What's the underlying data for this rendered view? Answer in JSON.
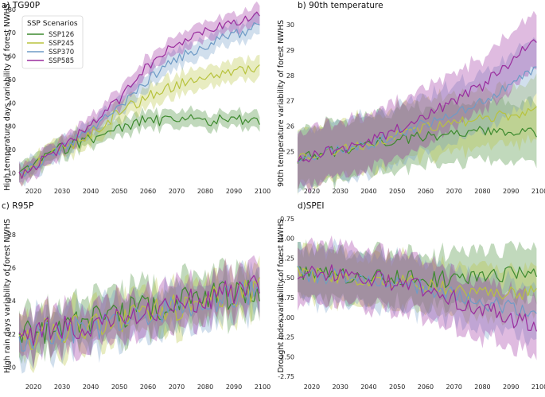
{
  "colors": {
    "SSP126": "#3d8a2e",
    "SSP245": "#b8c33e",
    "SSP370": "#6f9bc6",
    "SSP585": "#9a2d9e"
  },
  "legend": {
    "title": "SSP Scenarios",
    "entries": [
      "SSP126",
      "SSP245",
      "SSP370",
      "SSP585"
    ]
  },
  "chart_data": [
    {
      "type": "line",
      "title": "a) TG90P",
      "ylabel": "High temperature days variability of forest NWHS",
      "xlim": [
        2015,
        2100
      ],
      "ylim": [
        5,
        82
      ],
      "xticks": [
        "2020",
        "2030",
        "2040",
        "2050",
        "2060",
        "2070",
        "2080",
        "2090",
        "2100"
      ],
      "yticks": [
        "10",
        "20",
        "30",
        "40",
        "50",
        "60",
        "70",
        "80"
      ],
      "x_start": 2015,
      "x_end": 2099,
      "series": [
        {
          "name": "SSP126",
          "anchors": [
            [
              2015,
              9
            ],
            [
              2027,
              19
            ],
            [
              2040,
              25
            ],
            [
              2050,
              29
            ],
            [
              2058,
              32
            ],
            [
              2070,
              33
            ],
            [
              2099,
              32
            ]
          ],
          "band": 3.5,
          "noise": 2.6
        },
        {
          "name": "SSP245",
          "anchors": [
            [
              2015,
              9
            ],
            [
              2027,
              18
            ],
            [
              2040,
              27
            ],
            [
              2050,
              36
            ],
            [
              2060,
              43
            ],
            [
              2070,
              48
            ],
            [
              2085,
              52
            ],
            [
              2099,
              54
            ]
          ],
          "band": 4.5,
          "noise": 2.6
        },
        {
          "name": "SSP370",
          "anchors": [
            [
              2015,
              9
            ],
            [
              2027,
              18
            ],
            [
              2040,
              28
            ],
            [
              2050,
              38
            ],
            [
              2060,
              50
            ],
            [
              2070,
              59
            ],
            [
              2085,
              67
            ],
            [
              2099,
              73
            ]
          ],
          "band": 4,
          "noise": 2.2
        },
        {
          "name": "SSP585",
          "anchors": [
            [
              2015,
              9
            ],
            [
              2027,
              18
            ],
            [
              2040,
              31
            ],
            [
              2050,
              41
            ],
            [
              2060,
              56
            ],
            [
              2070,
              65
            ],
            [
              2085,
              73
            ],
            [
              2099,
              78
            ]
          ],
          "band": 4,
          "noise": 2.2
        }
      ]
    },
    {
      "type": "line",
      "title": "b) 90th temperature",
      "ylabel": "90th temperature variability of forest NWHS",
      "xlim": [
        2015,
        2100
      ],
      "ylim": [
        23.7,
        30.5
      ],
      "xticks": [
        "2020",
        "2030",
        "2040",
        "2050",
        "2060",
        "2070",
        "2080",
        "2090",
        "2100"
      ],
      "yticks": [
        "25",
        "26",
        "27",
        "28",
        "29",
        "30"
      ],
      "x_start": 2015,
      "x_end": 2099,
      "series": [
        {
          "name": "SSP126",
          "anchors": [
            [
              2015,
              24.7
            ],
            [
              2040,
              25.3
            ],
            [
              2060,
              25.6
            ],
            [
              2080,
              25.8
            ],
            [
              2099,
              25.7
            ]
          ],
          "band": 1.15,
          "noise": 0.22
        },
        {
          "name": "SSP245",
          "anchors": [
            [
              2015,
              24.7
            ],
            [
              2040,
              25.3
            ],
            [
              2060,
              25.9
            ],
            [
              2080,
              26.3
            ],
            [
              2099,
              26.6
            ]
          ],
          "band": 1.15,
          "noise": 0.22
        },
        {
          "name": "SSP370",
          "anchors": [
            [
              2015,
              24.7
            ],
            [
              2040,
              25.3
            ],
            [
              2060,
              26.1
            ],
            [
              2080,
              27.0
            ],
            [
              2099,
              28.3
            ]
          ],
          "band": 1.15,
          "noise": 0.22
        },
        {
          "name": "SSP585",
          "anchors": [
            [
              2015,
              24.7
            ],
            [
              2040,
              25.4
            ],
            [
              2060,
              26.4
            ],
            [
              2080,
              27.6
            ],
            [
              2099,
              29.4
            ]
          ],
          "band": 1.1,
          "noise": 0.22
        }
      ]
    },
    {
      "type": "line",
      "title": "c) R95P",
      "ylabel": "High rain days variability of forest NWHS",
      "xlim": [
        2015,
        2100
      ],
      "ylim": [
        19.2,
        29.2
      ],
      "xticks": [
        "2020",
        "2030",
        "2040",
        "2050",
        "2060",
        "2070",
        "2080",
        "2090",
        "2100"
      ],
      "yticks": [
        "20",
        "22",
        "24",
        "26",
        "28"
      ],
      "x_start": 2015,
      "x_end": 2099,
      "series": [
        {
          "name": "SSP126",
          "anchors": [
            [
              2015,
              22.0
            ],
            [
              2040,
              22.8
            ],
            [
              2060,
              23.6
            ],
            [
              2080,
              24.1
            ],
            [
              2099,
              24.6
            ]
          ],
          "band": 1.3,
          "noise": 0.9
        },
        {
          "name": "SSP245",
          "anchors": [
            [
              2015,
              21.8
            ],
            [
              2040,
              22.5
            ],
            [
              2060,
              23.4
            ],
            [
              2080,
              24.0
            ],
            [
              2099,
              24.8
            ]
          ],
          "band": 1.3,
          "noise": 0.9
        },
        {
          "name": "SSP370",
          "anchors": [
            [
              2015,
              21.7
            ],
            [
              2040,
              22.3
            ],
            [
              2060,
              23.2
            ],
            [
              2080,
              23.9
            ],
            [
              2099,
              24.6
            ]
          ],
          "band": 1.3,
          "noise": 0.8
        },
        {
          "name": "SSP585",
          "anchors": [
            [
              2015,
              21.9
            ],
            [
              2040,
              22.6
            ],
            [
              2060,
              23.5
            ],
            [
              2080,
              24.2
            ],
            [
              2099,
              24.9
            ]
          ],
          "band": 1.3,
          "noise": 0.8
        }
      ]
    },
    {
      "type": "line",
      "title": "d)SPEI",
      "ylabel": "Drought index variability of forest NWHS",
      "xlim": [
        2015,
        2100
      ],
      "ylim": [
        -2.8,
        -0.7
      ],
      "xticks": [
        "2020",
        "2030",
        "2040",
        "2050",
        "2060",
        "2070",
        "2080",
        "2090",
        "2100"
      ],
      "yticks": [
        "-0.75",
        "-1.00",
        "-1.25",
        "-1.50",
        "-1.75",
        "-2.00",
        "-2.25",
        "-2.50",
        "-2.75"
      ],
      "x_start": 2015,
      "x_end": 2099,
      "series": [
        {
          "name": "SSP126",
          "anchors": [
            [
              2015,
              -1.45
            ],
            [
              2040,
              -1.5
            ],
            [
              2060,
              -1.52
            ],
            [
              2080,
              -1.5
            ],
            [
              2099,
              -1.4
            ]
          ],
          "band": 0.32,
          "noise": 0.11
        },
        {
          "name": "SSP245",
          "anchors": [
            [
              2015,
              -1.45
            ],
            [
              2040,
              -1.5
            ],
            [
              2060,
              -1.58
            ],
            [
              2080,
              -1.68
            ],
            [
              2099,
              -1.7
            ]
          ],
          "band": 0.32,
          "noise": 0.11
        },
        {
          "name": "SSP370",
          "anchors": [
            [
              2015,
              -1.45
            ],
            [
              2040,
              -1.52
            ],
            [
              2060,
              -1.63
            ],
            [
              2080,
              -1.82
            ],
            [
              2099,
              -1.95
            ]
          ],
          "band": 0.34,
          "noise": 0.11
        },
        {
          "name": "SSP585",
          "anchors": [
            [
              2015,
              -1.4
            ],
            [
              2040,
              -1.48
            ],
            [
              2060,
              -1.63
            ],
            [
              2080,
              -1.9
            ],
            [
              2099,
              -2.1
            ]
          ],
          "band": 0.36,
          "noise": 0.12
        }
      ]
    }
  ]
}
